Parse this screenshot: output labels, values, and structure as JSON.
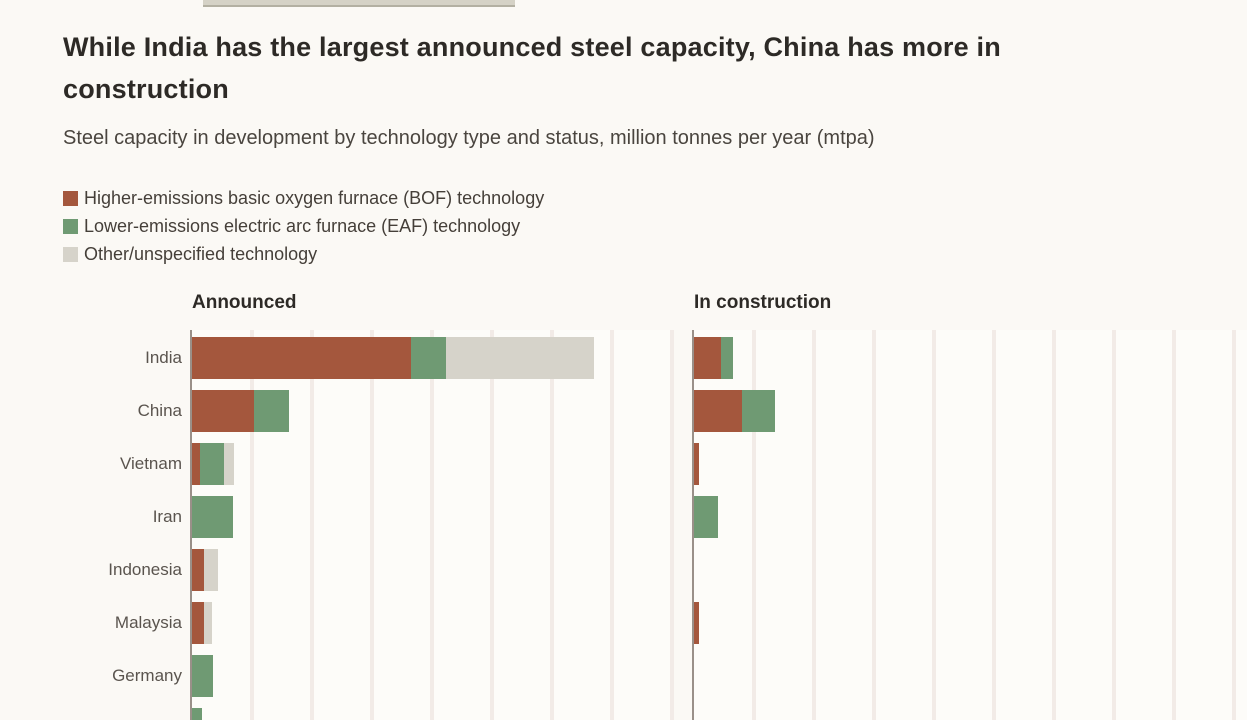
{
  "header": {
    "title": "While India has the largest announced steel capacity, China has more in construction",
    "subtitle": "Steel capacity in development by technology type and status, million tonnes per year (mtpa)"
  },
  "legend": {
    "items": [
      {
        "key": "bof",
        "label": "Higher-emissions basic oxygen furnace (BOF) technology",
        "color": "#a4573d"
      },
      {
        "key": "eaf",
        "label": "Lower-emissions electric arc furnace (EAF) technology",
        "color": "#6f9a73"
      },
      {
        "key": "other",
        "label": "Other/unspecified technology",
        "color": "#d6d3ca"
      }
    ]
  },
  "chart_data": {
    "type": "bar",
    "orientation": "horizontal",
    "stacked": true,
    "unit": "million tonnes per year (mtpa)",
    "grid": true,
    "legend_position": "top-left",
    "x_axis": {
      "min": 0,
      "gridline_interval_mtpa": 10,
      "tick_labels_visible": false
    },
    "categories": [
      "India",
      "China",
      "Vietnam",
      "Iran",
      "Indonesia",
      "Malaysia",
      "Germany",
      ""
    ],
    "panels": [
      {
        "title": "Announced",
        "series": [
          {
            "name": "Higher-emissions basic oxygen furnace (BOF) technology",
            "values": [
              36.5,
              10.4,
              1.4,
              0,
              2.0,
              2.0,
              0,
              0
            ]
          },
          {
            "name": "Lower-emissions electric arc furnace (EAF) technology",
            "values": [
              5.8,
              5.7,
              4.0,
              6.8,
              0,
              0,
              3.5,
              1.6
            ]
          },
          {
            "name": "Other/unspecified technology",
            "values": [
              24.7,
              0,
              1.6,
              0,
              2.4,
              1.4,
              0,
              0
            ]
          }
        ]
      },
      {
        "title": "In construction",
        "series": [
          {
            "name": "Higher-emissions basic oxygen furnace (BOF) technology",
            "values": [
              4.5,
              8.0,
              0.8,
              0,
              0,
              0.8,
              0,
              0
            ]
          },
          {
            "name": "Lower-emissions electric arc furnace (EAF) technology",
            "values": [
              2.0,
              5.5,
              0,
              4.0,
              0,
              0,
              0,
              0
            ]
          },
          {
            "name": "Other/unspecified technology",
            "values": [
              0,
              0,
              0,
              0,
              0,
              0,
              0,
              0
            ]
          }
        ]
      }
    ]
  }
}
